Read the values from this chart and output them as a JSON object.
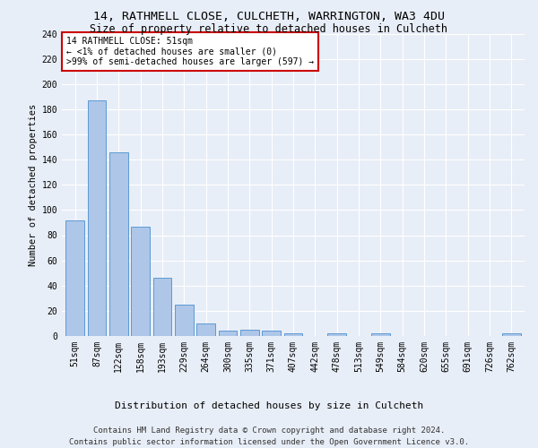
{
  "title1": "14, RATHMELL CLOSE, CULCHETH, WARRINGTON, WA3 4DU",
  "title2": "Size of property relative to detached houses in Culcheth",
  "xlabel": "Distribution of detached houses by size in Culcheth",
  "ylabel": "Number of detached properties",
  "footer1": "Contains HM Land Registry data © Crown copyright and database right 2024.",
  "footer2": "Contains public sector information licensed under the Open Government Licence v3.0.",
  "annotation_line1": "14 RATHMELL CLOSE: 51sqm",
  "annotation_line2": "← <1% of detached houses are smaller (0)",
  "annotation_line3": ">99% of semi-detached houses are larger (597) →",
  "bar_labels": [
    "51sqm",
    "87sqm",
    "122sqm",
    "158sqm",
    "193sqm",
    "229sqm",
    "264sqm",
    "300sqm",
    "335sqm",
    "371sqm",
    "407sqm",
    "442sqm",
    "478sqm",
    "513sqm",
    "549sqm",
    "584sqm",
    "620sqm",
    "655sqm",
    "691sqm",
    "726sqm",
    "762sqm"
  ],
  "bar_values": [
    92,
    187,
    146,
    87,
    46,
    25,
    10,
    4,
    5,
    4,
    2,
    0,
    2,
    0,
    2,
    0,
    0,
    0,
    0,
    0,
    2
  ],
  "bar_color": "#aec6e8",
  "bar_edge_color": "#5b9bd5",
  "annotation_box_color": "#ffffff",
  "annotation_box_edge": "#cc0000",
  "background_color": "#e8eef7",
  "plot_bg_color": "#e8eef7",
  "ylim": [
    0,
    240
  ],
  "yticks": [
    0,
    20,
    40,
    60,
    80,
    100,
    120,
    140,
    160,
    180,
    200,
    220,
    240
  ],
  "title1_fontsize": 9.5,
  "title2_fontsize": 8.5,
  "xlabel_fontsize": 8,
  "ylabel_fontsize": 7.5,
  "tick_fontsize": 7,
  "annotation_fontsize": 7,
  "footer_fontsize": 6.5
}
